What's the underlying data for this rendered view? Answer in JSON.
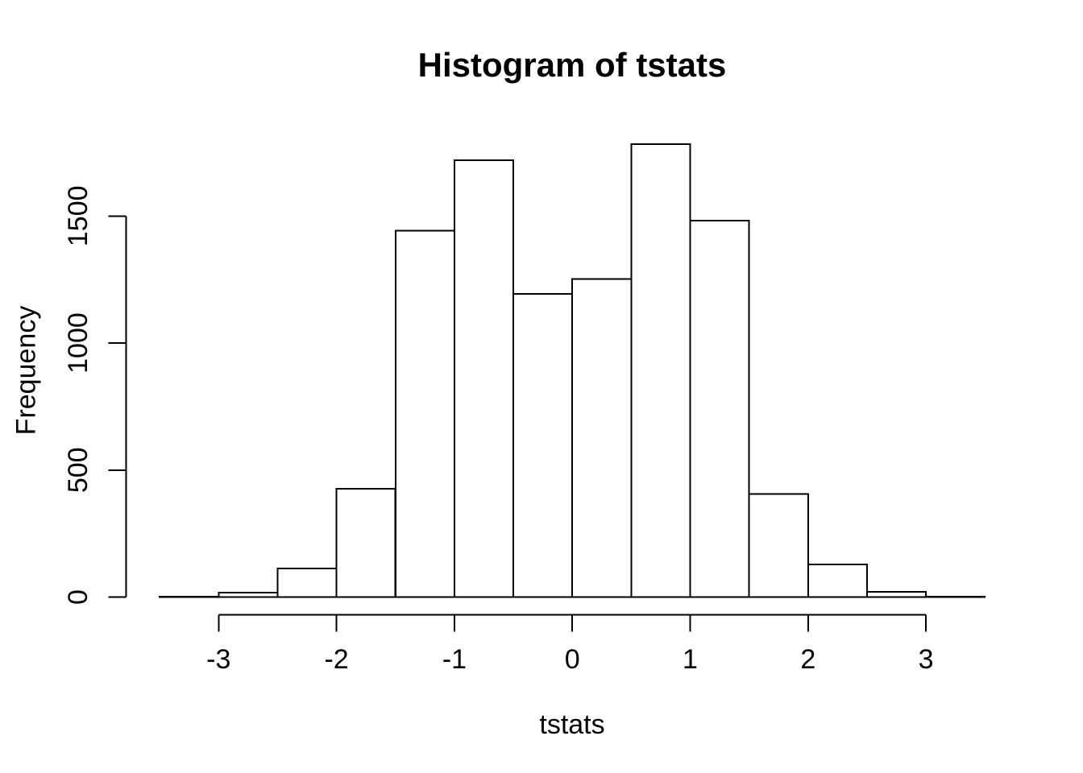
{
  "chart_data": {
    "type": "bar",
    "subtype": "histogram",
    "title": "Histogram of tstats",
    "xlabel": "tstats",
    "ylabel": "Frequency",
    "bin_start": -3.5,
    "bin_width": 0.5,
    "bin_edges": [
      -3.5,
      -3.0,
      -2.5,
      -2.0,
      -1.5,
      -1.0,
      -0.5,
      0.0,
      0.5,
      1.0,
      1.5,
      2.0,
      2.5,
      3.0,
      3.5
    ],
    "values": [
      2,
      18,
      113,
      427,
      1442,
      1719,
      1194,
      1252,
      1783,
      1482,
      406,
      128,
      21,
      2
    ],
    "x_ticks": [
      -3,
      -2,
      -1,
      0,
      1,
      2,
      3
    ],
    "x_tick_labels": [
      "-3",
      "-2",
      "-1",
      "0",
      "1",
      "2",
      "3"
    ],
    "y_ticks": [
      0,
      500,
      1000,
      1500
    ],
    "y_tick_labels": [
      "0",
      "500",
      "1000",
      "1500"
    ],
    "xlim": [
      -3.5,
      3.5
    ],
    "ylim": [
      0,
      1500
    ],
    "grid": false,
    "legend": "none",
    "bar_fill": "#ffffff",
    "bar_stroke": "#000000",
    "axis_color": "#000000",
    "background": "#ffffff"
  }
}
